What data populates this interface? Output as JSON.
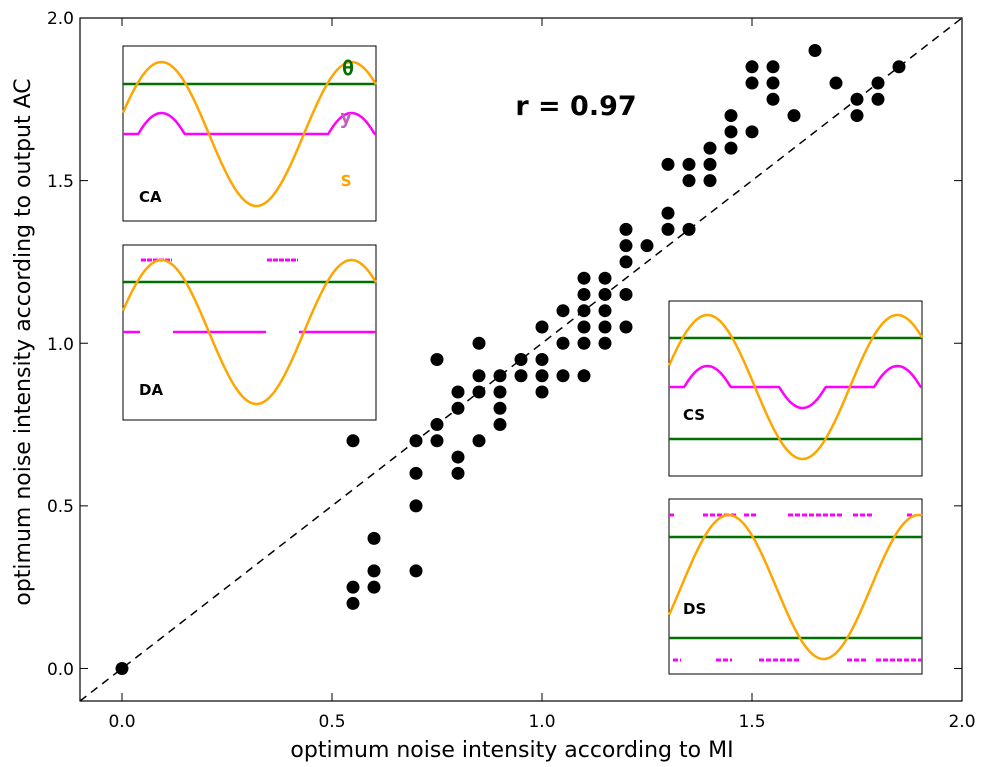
{
  "chart_data": {
    "type": "scatter",
    "xlabel": "optimum noise intensity according to MI",
    "ylabel": "optimum noise intensity according to output AC",
    "xlim": [
      -0.1,
      2.0
    ],
    "ylim": [
      -0.1,
      2.0
    ],
    "xticks": [
      "0.0",
      "0.5",
      "1.0",
      "1.5",
      "2.0"
    ],
    "yticks": [
      "0.0",
      "0.5",
      "1.0",
      "1.5",
      "2.0"
    ],
    "grid": false,
    "annotation": "r = 0.97",
    "diagonal_line": "y = x",
    "points": [
      [
        0.0,
        0.0
      ],
      [
        0.55,
        0.7
      ],
      [
        0.55,
        0.25
      ],
      [
        0.55,
        0.2
      ],
      [
        0.6,
        0.4
      ],
      [
        0.6,
        0.3
      ],
      [
        0.6,
        0.25
      ],
      [
        0.7,
        0.7
      ],
      [
        0.7,
        0.6
      ],
      [
        0.7,
        0.5
      ],
      [
        0.7,
        0.3
      ],
      [
        0.75,
        0.95
      ],
      [
        0.75,
        0.75
      ],
      [
        0.75,
        0.7
      ],
      [
        0.8,
        0.85
      ],
      [
        0.8,
        0.8
      ],
      [
        0.8,
        0.65
      ],
      [
        0.8,
        0.6
      ],
      [
        0.85,
        1.0
      ],
      [
        0.85,
        0.9
      ],
      [
        0.85,
        0.85
      ],
      [
        0.85,
        0.7
      ],
      [
        0.9,
        0.9
      ],
      [
        0.9,
        0.85
      ],
      [
        0.9,
        0.8
      ],
      [
        0.9,
        0.75
      ],
      [
        0.95,
        0.95
      ],
      [
        0.95,
        0.9
      ],
      [
        1.0,
        1.05
      ],
      [
        1.0,
        0.95
      ],
      [
        1.0,
        0.9
      ],
      [
        1.0,
        0.85
      ],
      [
        1.05,
        1.1
      ],
      [
        1.05,
        1.0
      ],
      [
        1.05,
        0.9
      ],
      [
        1.1,
        1.2
      ],
      [
        1.1,
        1.15
      ],
      [
        1.1,
        1.1
      ],
      [
        1.1,
        1.05
      ],
      [
        1.1,
        1.0
      ],
      [
        1.1,
        0.9
      ],
      [
        1.15,
        1.2
      ],
      [
        1.15,
        1.15
      ],
      [
        1.15,
        1.1
      ],
      [
        1.15,
        1.05
      ],
      [
        1.15,
        1.0
      ],
      [
        1.2,
        1.35
      ],
      [
        1.2,
        1.3
      ],
      [
        1.2,
        1.25
      ],
      [
        1.2,
        1.15
      ],
      [
        1.2,
        1.05
      ],
      [
        1.25,
        1.3
      ],
      [
        1.3,
        1.55
      ],
      [
        1.3,
        1.4
      ],
      [
        1.3,
        1.35
      ],
      [
        1.35,
        1.55
      ],
      [
        1.35,
        1.5
      ],
      [
        1.35,
        1.35
      ],
      [
        1.4,
        1.6
      ],
      [
        1.4,
        1.55
      ],
      [
        1.4,
        1.5
      ],
      [
        1.45,
        1.7
      ],
      [
        1.45,
        1.65
      ],
      [
        1.45,
        1.6
      ],
      [
        1.5,
        1.85
      ],
      [
        1.5,
        1.8
      ],
      [
        1.5,
        1.65
      ],
      [
        1.55,
        1.85
      ],
      [
        1.55,
        1.8
      ],
      [
        1.55,
        1.75
      ],
      [
        1.6,
        1.7
      ],
      [
        1.65,
        1.9
      ],
      [
        1.7,
        1.8
      ],
      [
        1.75,
        1.75
      ],
      [
        1.75,
        1.7
      ],
      [
        1.8,
        1.8
      ],
      [
        1.8,
        1.75
      ],
      [
        1.85,
        1.85
      ]
    ],
    "insets": [
      {
        "label": "CA",
        "legend": [
          "θ",
          "y",
          "s"
        ]
      },
      {
        "label": "DA"
      },
      {
        "label": "CS"
      },
      {
        "label": "DS"
      }
    ]
  },
  "colors": {
    "signal": "#FFA500",
    "threshold": "#007000",
    "output": "#FF00FF",
    "output_label": "#C060C0",
    "points": "#000000"
  }
}
